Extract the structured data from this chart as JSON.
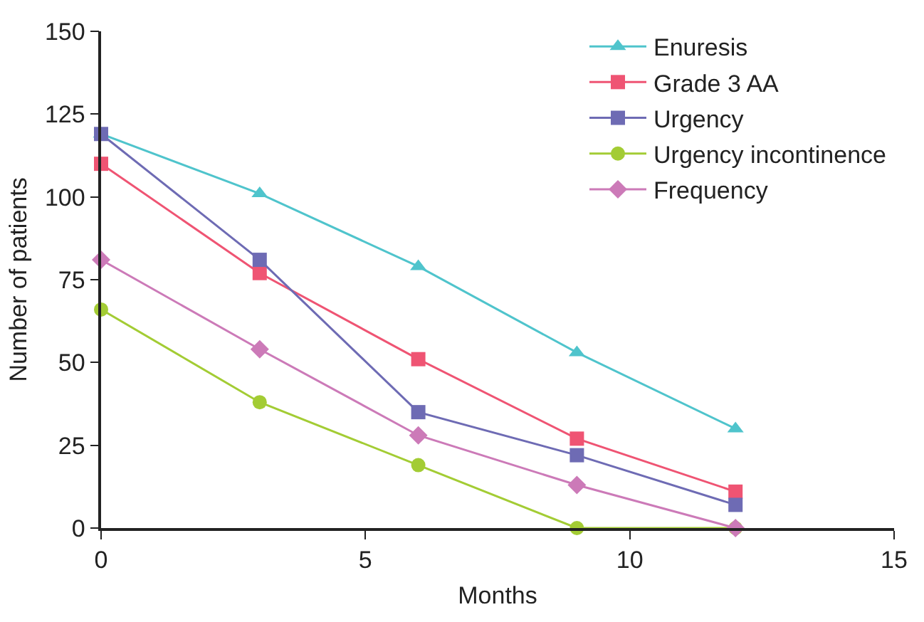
{
  "chart_data": {
    "type": "line",
    "xlabel": "Months",
    "ylabel": "Number of patients",
    "x": [
      0,
      3,
      6,
      9,
      12
    ],
    "xlim": [
      0,
      15
    ],
    "xticks": [
      0,
      5,
      10,
      15
    ],
    "ylim": [
      0,
      150
    ],
    "yticks": [
      0,
      25,
      50,
      75,
      100,
      125,
      150
    ],
    "legend": "top right",
    "series": [
      {
        "name": "Enuresis",
        "color": "#4fc4cc",
        "marker": "triangle",
        "values": [
          119,
          101,
          79,
          53,
          30
        ]
      },
      {
        "name": "Grade 3 AA",
        "color": "#ef5473",
        "marker": "square",
        "values": [
          110,
          77,
          51,
          27,
          11
        ]
      },
      {
        "name": "Urgency",
        "color": "#6e6bb4",
        "marker": "square",
        "values": [
          119,
          81,
          35,
          22,
          7
        ]
      },
      {
        "name": "Urgency incontinence",
        "color": "#a3cc34",
        "marker": "circle",
        "values": [
          66,
          38,
          19,
          0,
          0
        ]
      },
      {
        "name": "Frequency",
        "color": "#cc7ab8",
        "marker": "diamond",
        "values": [
          81,
          54,
          28,
          13,
          0
        ]
      }
    ]
  }
}
